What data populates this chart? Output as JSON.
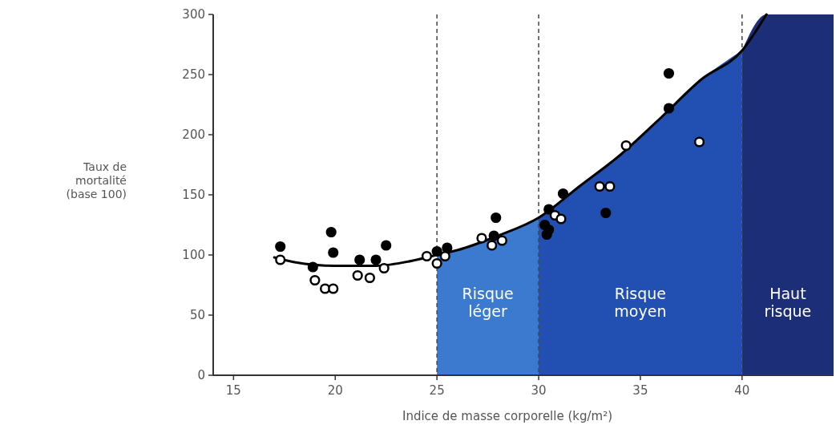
{
  "chart_data": {
    "type": "scatter",
    "xlabel": "Indice de masse corporelle (kg/m²)",
    "ylabel": "Taux de\nmortalité\n(base 100)",
    "xlim": [
      14,
      44.5
    ],
    "xticks": [
      15,
      20,
      25,
      30,
      35,
      40
    ],
    "ylim": [
      0,
      300
    ],
    "yticks": [
      0,
      50,
      100,
      150,
      200,
      250,
      300
    ],
    "series": [
      {
        "type": "area",
        "color": "#3c7ad0",
        "x": [
          25,
          26,
          28,
          30
        ],
        "values": [
          100,
          104,
          116,
          131
        ]
      },
      {
        "type": "area",
        "color": "#2150b2",
        "x": [
          30,
          32,
          34,
          36,
          38,
          40
        ],
        "values": [
          131,
          157,
          183,
          214,
          246,
          270
        ]
      },
      {
        "type": "area",
        "color": "#1d2e78",
        "x": [
          40,
          41.2,
          44.5
        ],
        "values": [
          270,
          300,
          300
        ]
      },
      {
        "type": "line",
        "color": "#000000",
        "x": [
          17,
          18,
          20,
          22,
          24,
          25,
          26,
          28,
          30,
          32,
          34,
          36,
          38,
          40,
          41.2
        ],
        "values": [
          98,
          94,
          91,
          91,
          96,
          100,
          104,
          116,
          131,
          157,
          183,
          214,
          246,
          270,
          300
        ]
      },
      {
        "color": "#000000",
        "marker": "circle",
        "x": [
          17.3,
          18.9,
          19.8,
          19.9,
          21.2,
          22.0,
          22.5,
          25.0,
          25.5,
          27.4,
          27.8,
          27.9,
          30.3,
          30.4,
          30.5,
          30.5,
          31.2,
          33.3,
          36.4,
          36.4
        ],
        "values": [
          107,
          90,
          119,
          102,
          96,
          96,
          108,
          103,
          106,
          null,
          116,
          131,
          125,
          117,
          121,
          138,
          151,
          135,
          222,
          251
        ]
      },
      {
        "color": "#ffffff",
        "marker": "circle",
        "x": [
          17.3,
          19.0,
          19.5,
          19.9,
          21.1,
          21.7,
          22.4,
          24.5,
          25.0,
          25.4,
          27.2,
          27.7,
          28.2,
          30.8,
          31.1,
          33.0,
          33.5,
          34.3,
          37.9
        ],
        "values": [
          96,
          79,
          72,
          72,
          83,
          81,
          89,
          99,
          93,
          99,
          114,
          108,
          112,
          133,
          130,
          157,
          157,
          191,
          194
        ]
      }
    ],
    "ref_lines": [
      {
        "axis": "x",
        "value": 25,
        "line_style": "dashed",
        "color": "#444444"
      },
      {
        "axis": "x",
        "value": 30,
        "line_style": "dashed",
        "color": "#444444"
      },
      {
        "axis": "x",
        "value": 40,
        "line_style": "dashed",
        "color": "#444444"
      }
    ],
    "annotations": [
      "Risque\nléger",
      "Risque\nmoyen",
      "Haut\nrisque"
    ]
  }
}
